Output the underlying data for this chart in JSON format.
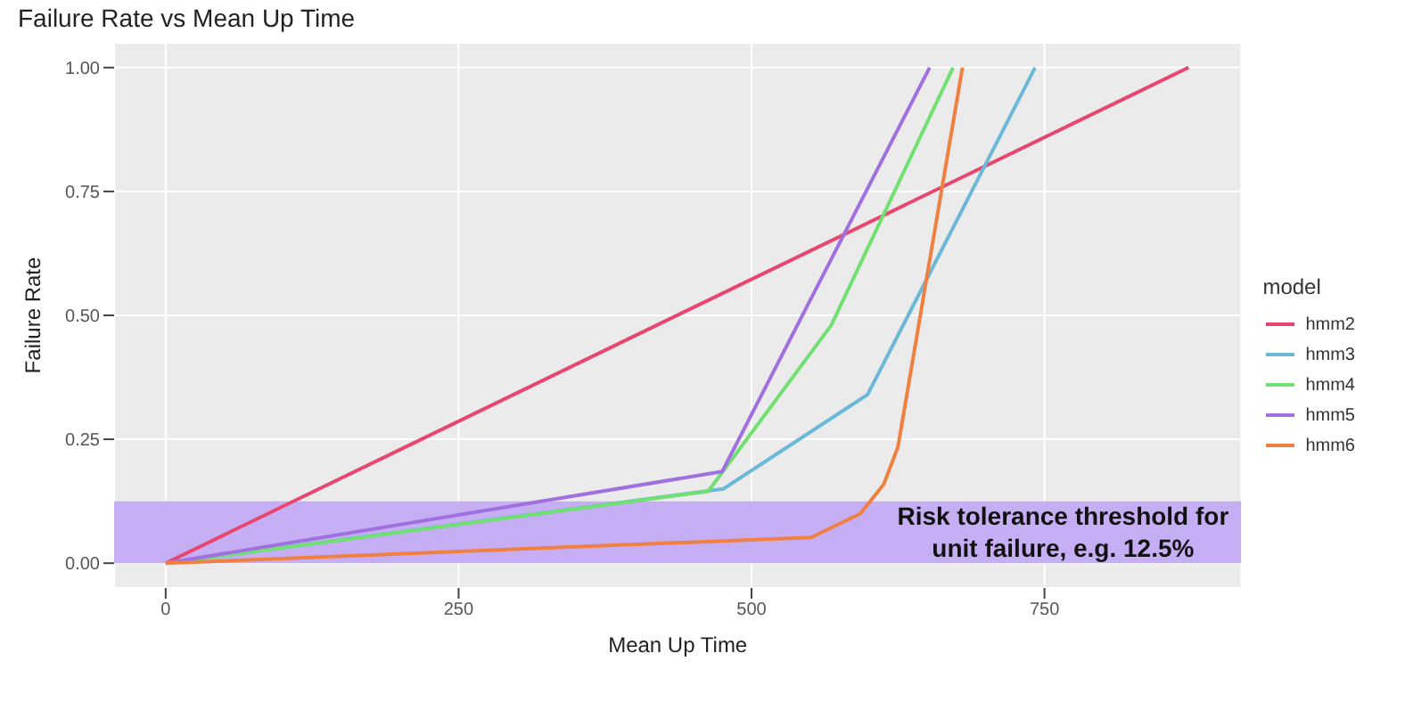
{
  "chart_data": {
    "type": "line",
    "title": "Failure Rate vs Mean Up Time",
    "xlabel": "Mean Up Time",
    "ylabel": "Failure Rate",
    "legend_title": "model",
    "legend": "right",
    "series": [
      {
        "name": "hmm2",
        "color": "#e8466e",
        "x": [
          0,
          873
        ],
        "values": [
          0,
          1
        ]
      },
      {
        "name": "hmm3",
        "color": "#6bb8d8",
        "x": [
          0,
          476,
          599,
          742
        ],
        "values": [
          0,
          0.15,
          0.34,
          1
        ]
      },
      {
        "name": "hmm4",
        "color": "#70e070",
        "x": [
          0,
          463,
          568,
          672
        ],
        "values": [
          0,
          0.145,
          0.48,
          1
        ]
      },
      {
        "name": "hmm5",
        "color": "#a070e0",
        "x": [
          0,
          475,
          652
        ],
        "values": [
          0,
          0.185,
          1
        ]
      },
      {
        "name": "hmm6",
        "color": "#f08040",
        "x": [
          0,
          551,
          593,
          613,
          625,
          680
        ],
        "values": [
          0,
          0.052,
          0.1,
          0.16,
          0.235,
          1
        ]
      }
    ],
    "xlim": [
      -44,
      918
    ],
    "xticks": [
      0,
      250,
      500,
      750
    ],
    "ylim": [
      -0.05,
      1.05
    ],
    "yticks": [
      {
        "value": 0,
        "label": "0.00"
      },
      {
        "value": 0.25,
        "label": "0.25"
      },
      {
        "value": 0.5,
        "label": "0.50"
      },
      {
        "value": 0.75,
        "label": "0.75"
      },
      {
        "value": 1,
        "label": "1.00"
      }
    ],
    "grid": true,
    "marker": "none",
    "line_style": "solid",
    "bands": [
      {
        "axis": "y",
        "from": 0,
        "to": 0.125,
        "label": "Risk tolerance threshold for unit failure, e.g. 12.5%",
        "color": "#c6aef5"
      }
    ]
  }
}
